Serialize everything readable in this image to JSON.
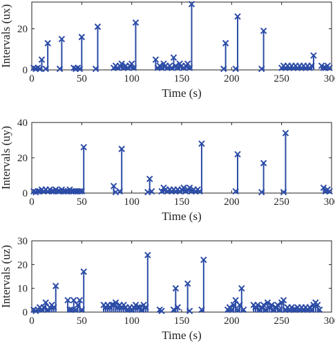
{
  "style": {
    "series_color": "#2b4ba6",
    "axis_color": "#231f20",
    "background": "#ffffff"
  },
  "chart_data": [
    {
      "type": "stem",
      "xlabel": "Time (s)",
      "ylabel": "Intervals (ux)",
      "xlim": [
        0,
        300
      ],
      "ylim": [
        0,
        33
      ],
      "xticks": [
        0,
        50,
        100,
        150,
        200,
        250,
        300
      ],
      "yticks": [
        0,
        20
      ],
      "grid": false,
      "marker": "x",
      "series": [
        {
          "x": [
            2,
            4,
            6,
            8,
            10,
            14,
            16,
            28,
            30,
            42,
            44,
            46,
            48,
            50,
            64,
            66,
            82,
            84,
            86,
            88,
            90,
            92,
            94,
            96,
            98,
            100,
            102,
            104,
            124,
            126,
            128,
            130,
            132,
            134,
            136,
            138,
            140,
            142,
            144,
            146,
            148,
            150,
            152,
            154,
            156,
            158,
            160,
            192,
            194,
            204,
            206,
            230,
            232,
            250,
            252,
            254,
            256,
            258,
            260,
            262,
            264,
            266,
            268,
            270,
            272,
            274,
            276,
            278,
            280,
            282,
            290,
            292,
            294,
            296,
            298
          ],
          "y": [
            1,
            0.5,
            1,
            0.5,
            5,
            0.5,
            13,
            0.5,
            15,
            1,
            0.5,
            1,
            0.5,
            16,
            0.5,
            21,
            1,
            2,
            1,
            2,
            3,
            1,
            2,
            1,
            2,
            3,
            1,
            23,
            5,
            1,
            2,
            1,
            3,
            2,
            1,
            2,
            1,
            6,
            2,
            1,
            3,
            2,
            1,
            2,
            3,
            1,
            32,
            0.5,
            13,
            0.5,
            26,
            0.5,
            19,
            1,
            2,
            1,
            2,
            1,
            2,
            1,
            2,
            1,
            2,
            1,
            2,
            1,
            2,
            1,
            2,
            7,
            2,
            1,
            1,
            2,
            1
          ]
        }
      ]
    },
    {
      "type": "stem",
      "xlabel": "Time (s)",
      "ylabel": "Intervals (uy)",
      "xlim": [
        0,
        300
      ],
      "ylim": [
        0,
        40
      ],
      "xticks": [
        0,
        50,
        100,
        150,
        200,
        250,
        300
      ],
      "yticks": [
        0,
        20,
        40
      ],
      "grid": false,
      "marker": "x",
      "series": [
        {
          "x": [
            2,
            4,
            6,
            8,
            10,
            12,
            14,
            16,
            18,
            20,
            22,
            24,
            26,
            28,
            30,
            32,
            34,
            36,
            38,
            40,
            42,
            44,
            46,
            48,
            50,
            52,
            82,
            84,
            88,
            90,
            116,
            118,
            120,
            130,
            132,
            134,
            136,
            138,
            140,
            142,
            144,
            146,
            148,
            150,
            152,
            154,
            156,
            158,
            160,
            162,
            164,
            166,
            168,
            170,
            204,
            206,
            230,
            232,
            252,
            254,
            292,
            294,
            296,
            298
          ],
          "y": [
            1,
            0.5,
            1,
            1,
            2,
            1,
            2,
            1,
            2,
            1,
            1,
            2,
            1,
            1,
            2,
            1,
            1,
            1,
            2,
            1,
            1,
            1,
            1,
            1,
            1,
            26,
            4,
            0.5,
            1,
            25,
            0.5,
            8,
            1,
            1,
            3,
            2,
            1,
            2,
            1,
            2,
            1,
            2,
            1,
            2,
            3,
            1,
            2,
            3,
            1,
            2,
            1,
            2,
            1,
            28,
            1,
            22,
            0.5,
            17,
            0.5,
            34,
            3,
            1,
            2,
            1
          ]
        }
      ]
    },
    {
      "type": "stem",
      "xlabel": "Time (s)",
      "ylabel": "Intervals (uz)",
      "xlim": [
        0,
        300
      ],
      "ylim": [
        0,
        30
      ],
      "xticks": [
        0,
        50,
        100,
        150,
        200,
        250,
        300
      ],
      "yticks": [
        0,
        10,
        20,
        30
      ],
      "grid": false,
      "marker": "x",
      "series": [
        {
          "x": [
            2,
            4,
            6,
            8,
            10,
            12,
            14,
            16,
            18,
            20,
            22,
            24,
            36,
            38,
            40,
            42,
            44,
            46,
            48,
            50,
            52,
            72,
            74,
            76,
            78,
            80,
            82,
            84,
            86,
            88,
            90,
            92,
            94,
            96,
            98,
            100,
            102,
            104,
            106,
            108,
            110,
            112,
            114,
            116,
            128,
            130,
            142,
            144,
            146,
            156,
            158,
            170,
            172,
            196,
            198,
            200,
            202,
            204,
            206,
            208,
            210,
            212,
            222,
            224,
            226,
            228,
            230,
            232,
            234,
            236,
            238,
            240,
            242,
            244,
            246,
            248,
            250,
            252,
            254,
            256,
            258,
            260,
            262,
            264,
            266,
            268,
            270,
            272,
            274,
            276,
            278,
            280,
            282,
            284,
            286,
            288
          ],
          "y": [
            1,
            0.5,
            1,
            2,
            1,
            2,
            4,
            1,
            2,
            3,
            2,
            11,
            5,
            1,
            1,
            5,
            1,
            3,
            5,
            1,
            17,
            3,
            2,
            3,
            2,
            3,
            3,
            4,
            2,
            3,
            2,
            3,
            2,
            1,
            2,
            1,
            2,
            3,
            2,
            2,
            1,
            3,
            2,
            24,
            1,
            0.5,
            1,
            10,
            2,
            12,
            0.5,
            1,
            22,
            1,
            2,
            1,
            3,
            5,
            1,
            3,
            10,
            1,
            3,
            2,
            3,
            1,
            2,
            3,
            1,
            4,
            2,
            3,
            1,
            2,
            3,
            1,
            4,
            5,
            1,
            2,
            1,
            2,
            1,
            1,
            2,
            1,
            2,
            1,
            2,
            1,
            2,
            1,
            3,
            4,
            3,
            1
          ]
        }
      ]
    }
  ]
}
